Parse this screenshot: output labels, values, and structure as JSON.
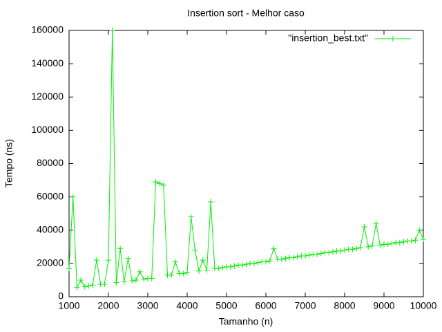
{
  "chart_data": {
    "type": "line",
    "title": "Insertion sort - Melhor caso",
    "x_label": "Tamanho (n)",
    "y_label": "Tempo (ns)",
    "legend_position": "top-right",
    "grid": false,
    "x": [
      1000,
      1100,
      1200,
      1300,
      1400,
      1500,
      1600,
      1700,
      1800,
      1900,
      2000,
      2100,
      2200,
      2300,
      2400,
      2500,
      2600,
      2700,
      2800,
      2900,
      3000,
      3100,
      3200,
      3300,
      3400,
      3500,
      3600,
      3700,
      3800,
      3900,
      4000,
      4100,
      4200,
      4300,
      4400,
      4500,
      4600,
      4700,
      4800,
      4900,
      5000,
      5100,
      5200,
      5300,
      5400,
      5500,
      5600,
      5700,
      5800,
      5900,
      6000,
      6100,
      6200,
      6300,
      6400,
      6500,
      6600,
      6700,
      6800,
      6900,
      7000,
      7100,
      7200,
      7300,
      7400,
      7500,
      7600,
      7700,
      7800,
      7900,
      8000,
      8100,
      8200,
      8300,
      8400,
      8500,
      8600,
      8700,
      8800,
      8900,
      9000,
      9100,
      9200,
      9300,
      9400,
      9500,
      9600,
      9700,
      9800,
      9900,
      10000
    ],
    "series": [
      {
        "name": "\"insertion_best.txt\"",
        "color": "#00ee00",
        "values": [
          17000,
          60000,
          5500,
          10000,
          6000,
          6500,
          7000,
          22000,
          7500,
          7500,
          22000,
          160000,
          8500,
          29000,
          9000,
          23000,
          9500,
          10000,
          15000,
          10500,
          11000,
          11000,
          69000,
          68000,
          67000,
          13000,
          13000,
          21000,
          14000,
          14000,
          14500,
          48000,
          28000,
          15500,
          22000,
          16000,
          57000,
          17000,
          17000,
          17500,
          18000,
          18000,
          18500,
          19000,
          19000,
          19500,
          20000,
          20000,
          20500,
          21000,
          21000,
          21500,
          29000,
          22500,
          22500,
          23000,
          23500,
          23500,
          24000,
          24500,
          24500,
          25000,
          25500,
          25500,
          26000,
          26500,
          26500,
          27000,
          27500,
          27500,
          28000,
          28500,
          28500,
          29000,
          29500,
          42000,
          30000,
          30500,
          44000,
          31000,
          31500,
          31500,
          32000,
          32500,
          32500,
          33000,
          33500,
          33500,
          34000,
          40000,
          34500
        ]
      }
    ],
    "xlim": [
      1000,
      10000
    ],
    "xticks": [
      1000,
      2000,
      3000,
      4000,
      5000,
      6000,
      7000,
      8000,
      9000,
      10000
    ],
    "ylim": [
      0,
      160000
    ],
    "yticks": [
      0,
      20000,
      40000,
      60000,
      80000,
      100000,
      120000,
      140000,
      160000
    ]
  }
}
